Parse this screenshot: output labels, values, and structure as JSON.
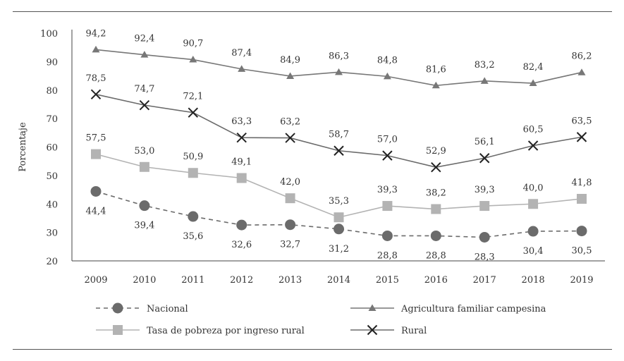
{
  "chart_data": {
    "type": "line",
    "ylabel": "Porcentaje",
    "ylim": [
      20,
      100
    ],
    "yticks": [
      20,
      30,
      40,
      50,
      60,
      70,
      80,
      90,
      100
    ],
    "categories": [
      "2009",
      "2010",
      "2011",
      "2012",
      "2013",
      "2014",
      "2015",
      "2016",
      "2017",
      "2018",
      "2019"
    ],
    "series": [
      {
        "key": "afc",
        "name": "Agricultura familiar campesina",
        "marker": "triangle",
        "dashed": false,
        "color": "#777777",
        "label_position": "above",
        "values": [
          94.2,
          92.4,
          90.7,
          87.4,
          84.9,
          86.3,
          84.8,
          81.6,
          83.2,
          82.4,
          86.2
        ],
        "labels": [
          "94,2",
          "92,4",
          "90,7",
          "87,4",
          "84,9",
          "86,3",
          "84,8",
          "81,6",
          "83,2",
          "82,4",
          "86,2"
        ]
      },
      {
        "key": "rural",
        "name": "Rural",
        "marker": "x",
        "dashed": false,
        "color": "#6b6b6b",
        "label_position": "above",
        "values": [
          78.5,
          74.7,
          72.1,
          63.3,
          63.2,
          58.7,
          57.0,
          52.9,
          56.1,
          60.5,
          63.5
        ],
        "labels": [
          "78,5",
          "74,7",
          "72,1",
          "63,3",
          "63,2",
          "58,7",
          "57,0",
          "52,9",
          "56,1",
          "60,5",
          "63,5"
        ]
      },
      {
        "key": "tasa",
        "name": "Tasa de pobreza por ingreso rural",
        "marker": "square",
        "dashed": false,
        "color": "#b3b3b3",
        "label_position": "above",
        "values": [
          57.5,
          53.0,
          50.9,
          49.1,
          42.0,
          35.3,
          39.3,
          38.2,
          39.3,
          40.0,
          41.8
        ],
        "labels": [
          "57,5",
          "53,0",
          "50,9",
          "49,1",
          "42,0",
          "35,3",
          "39,3",
          "38,2",
          "39,3",
          "40,0",
          "41,8"
        ]
      },
      {
        "key": "nacional",
        "name": "Nacional",
        "marker": "circle",
        "dashed": true,
        "color": "#6b6b6b",
        "label_position": "below",
        "values": [
          44.4,
          39.4,
          35.6,
          32.6,
          32.7,
          31.2,
          28.8,
          28.8,
          28.3,
          30.4,
          30.5
        ],
        "labels": [
          "44,4",
          "39,4",
          "35,6",
          "32,6",
          "32,7",
          "31,2",
          "28,8",
          "28,8",
          "28,3",
          "30,4",
          "30,5"
        ]
      }
    ],
    "legend": {
      "placement": "bottom",
      "order": [
        "nacional",
        "afc",
        "tasa",
        "rural"
      ]
    }
  }
}
